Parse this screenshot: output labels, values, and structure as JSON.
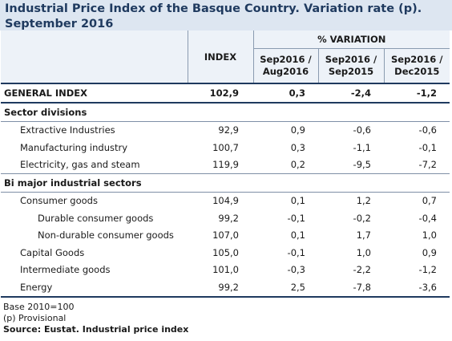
{
  "title": {
    "line1": "Industrial Price Index of the Basque Country. Variation rate (p).",
    "line2": "September 2016"
  },
  "header": {
    "index_label": "INDEX",
    "variation_label": "% VARIATION",
    "cols": [
      {
        "line1": "Sep2016 /",
        "line2": "Aug2016"
      },
      {
        "line1": "Sep2016 /",
        "line2": "Sep2015"
      },
      {
        "line1": "Sep2016 /",
        "line2": "Dec2015"
      }
    ]
  },
  "general": {
    "label": "GENERAL INDEX",
    "index": "102,9",
    "v1": "0,3",
    "v2": "-2,4",
    "v3": "-1,2"
  },
  "sector": {
    "title": "Sector divisions",
    "rows": [
      {
        "label": "Extractive Industries",
        "index": "92,9",
        "v1": "0,9",
        "v2": "-0,6",
        "v3": "-0,6"
      },
      {
        "label": "Manufacturing industry",
        "index": "100,7",
        "v1": "0,3",
        "v2": "-1,1",
        "v3": "-0,1"
      },
      {
        "label": "Electricity, gas and steam",
        "index": "119,9",
        "v1": "0,2",
        "v2": "-9,5",
        "v3": "-7,2"
      }
    ]
  },
  "bi": {
    "title": "Bi major industrial sectors",
    "consumer": {
      "label": "Consumer goods",
      "index": "104,9",
      "v1": "0,1",
      "v2": "1,2",
      "v3": "0,7"
    },
    "durable": {
      "label": "Durable consumer goods",
      "index": "99,2",
      "v1": "-0,1",
      "v2": "-0,2",
      "v3": "-0,4"
    },
    "nondurable": {
      "label": "Non-durable consumer goods",
      "index": "107,0",
      "v1": "0,1",
      "v2": "1,7",
      "v3": "1,0"
    },
    "capital": {
      "label": "Capital Goods",
      "index": "105,0",
      "v1": "-0,1",
      "v2": "1,0",
      "v3": "0,9"
    },
    "intermediate": {
      "label": "Intermediate goods",
      "index": "101,0",
      "v1": "-0,3",
      "v2": "-2,2",
      "v3": "-1,2"
    },
    "energy": {
      "label": "Energy",
      "index": "99,2",
      "v1": "2,5",
      "v2": "-7,8",
      "v3": "-3,6"
    }
  },
  "footer": {
    "base": "Base 2010=100",
    "provisional": "(p) Provisional",
    "source": "Source: Eustat. Industrial price index"
  }
}
